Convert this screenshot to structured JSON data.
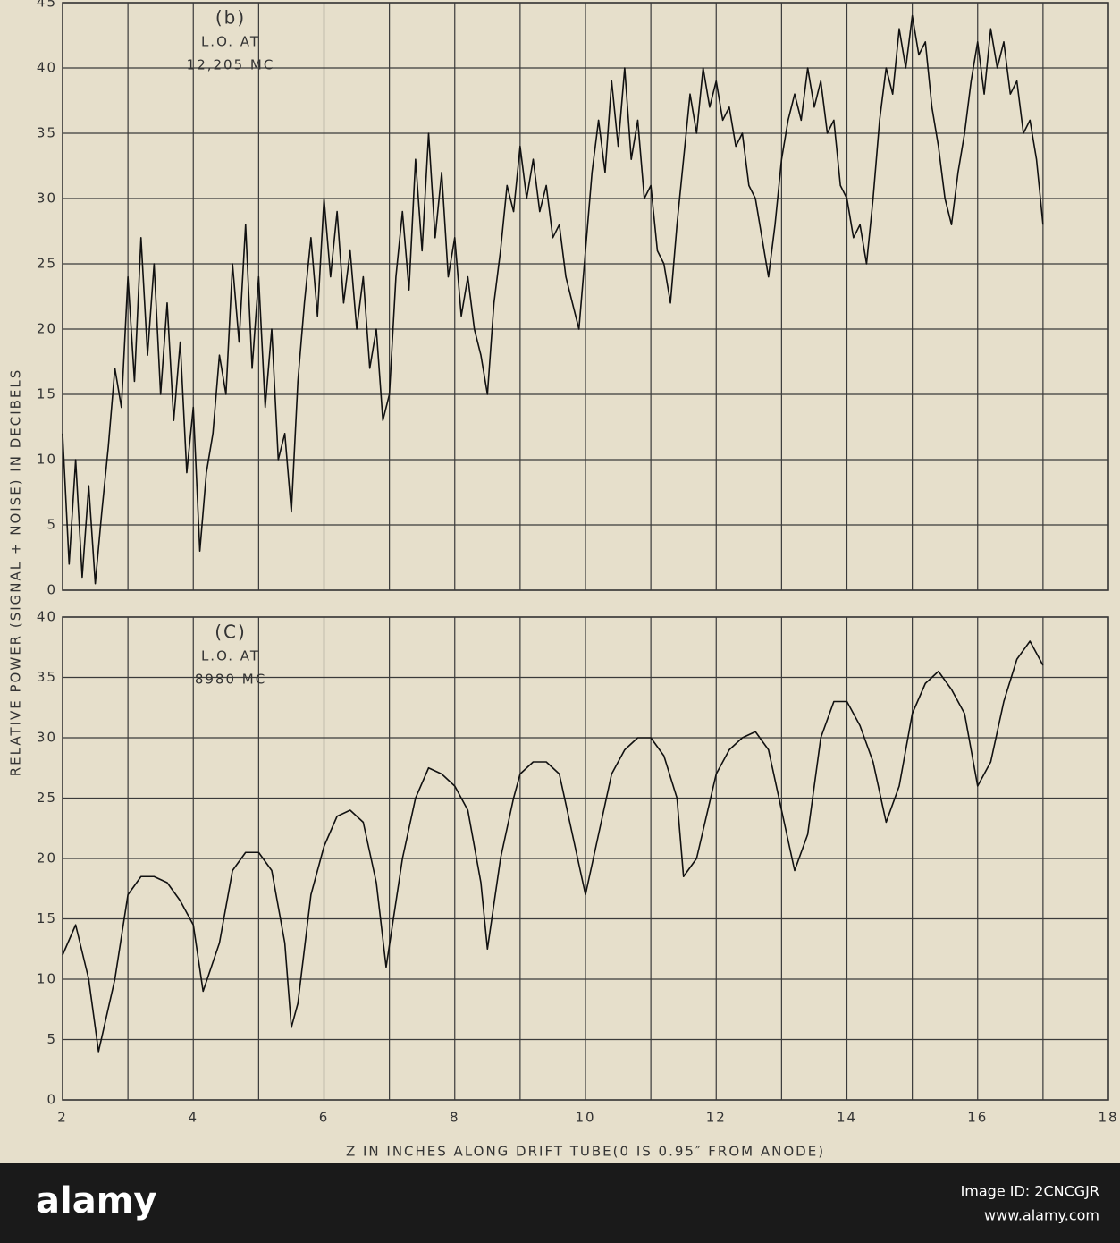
{
  "chart_data": [
    {
      "type": "line",
      "annotations": [
        "(b)",
        "L.O. AT",
        "12,205 MC"
      ],
      "ylabel": "RELATIVE POWER (SIGNAL + NOISE) IN DECIBELS",
      "ylim": [
        0,
        45
      ],
      "yticks": [
        0,
        5,
        10,
        15,
        20,
        25,
        30,
        35,
        40,
        45
      ],
      "grid": true,
      "series": [
        {
          "color": "#111111",
          "x": [
            2.0,
            2.1,
            2.2,
            2.3,
            2.4,
            2.5,
            2.6,
            2.7,
            2.8,
            2.9,
            3.0,
            3.1,
            3.2,
            3.3,
            3.4,
            3.5,
            3.6,
            3.7,
            3.8,
            3.9,
            4.0,
            4.1,
            4.2,
            4.3,
            4.4,
            4.5,
            4.6,
            4.7,
            4.8,
            4.9,
            5.0,
            5.1,
            5.2,
            5.3,
            5.4,
            5.5,
            5.6,
            5.7,
            5.8,
            5.9,
            6.0,
            6.1,
            6.2,
            6.3,
            6.4,
            6.5,
            6.6,
            6.7,
            6.8,
            6.9,
            7.0,
            7.1,
            7.2,
            7.3,
            7.4,
            7.5,
            7.6,
            7.7,
            7.8,
            7.9,
            8.0,
            8.1,
            8.2,
            8.3,
            8.4,
            8.5,
            8.6,
            8.7,
            8.8,
            8.9,
            9.0,
            9.1,
            9.2,
            9.3,
            9.4,
            9.5,
            9.6,
            9.7,
            9.8,
            9.9,
            10.0,
            10.1,
            10.2,
            10.3,
            10.4,
            10.5,
            10.6,
            10.7,
            10.8,
            10.9,
            11.0,
            11.1,
            11.2,
            11.3,
            11.4,
            11.5,
            11.6,
            11.7,
            11.8,
            11.9,
            12.0,
            12.1,
            12.2,
            12.3,
            12.4,
            12.5,
            12.6,
            12.7,
            12.8,
            12.9,
            13.0,
            13.1,
            13.2,
            13.3,
            13.4,
            13.5,
            13.6,
            13.7,
            13.8,
            13.9,
            14.0,
            14.1,
            14.2,
            14.3,
            14.4,
            14.5,
            14.6,
            14.7,
            14.8,
            14.9,
            15.0,
            15.1,
            15.2,
            15.3,
            15.4,
            15.5,
            15.6,
            15.7,
            15.8,
            15.9,
            16.0,
            16.1,
            16.2,
            16.3,
            16.4,
            16.5,
            16.6,
            16.7,
            16.8,
            16.9,
            17.0
          ],
          "values": [
            12,
            2,
            10,
            1,
            8,
            0.5,
            6,
            11,
            17,
            14,
            24,
            16,
            27,
            18,
            25,
            15,
            22,
            13,
            19,
            9,
            14,
            3,
            9,
            12,
            18,
            15,
            25,
            19,
            28,
            17,
            24,
            14,
            20,
            10,
            12,
            6,
            16,
            22,
            27,
            21,
            30,
            24,
            29,
            22,
            26,
            20,
            24,
            17,
            20,
            13,
            15,
            24,
            29,
            23,
            33,
            26,
            35,
            27,
            32,
            24,
            27,
            21,
            24,
            20,
            18,
            15,
            22,
            26,
            31,
            29,
            34,
            30,
            33,
            29,
            31,
            27,
            28,
            24,
            22,
            20,
            26,
            32,
            36,
            32,
            39,
            34,
            40,
            33,
            36,
            30,
            31,
            26,
            25,
            22,
            28,
            33,
            38,
            35,
            40,
            37,
            39,
            36,
            37,
            34,
            35,
            31,
            30,
            27,
            24,
            28,
            33,
            36,
            38,
            36,
            40,
            37,
            39,
            35,
            36,
            31,
            30,
            27,
            28,
            25,
            30,
            36,
            40,
            38,
            43,
            40,
            44,
            41,
            42,
            37,
            34,
            30,
            28,
            32,
            35,
            39,
            42,
            38,
            43,
            40,
            42,
            38,
            39,
            35,
            36,
            33,
            28
          ]
        }
      ]
    },
    {
      "type": "line",
      "annotations": [
        "(C)",
        "L.O. AT",
        "8980 MC"
      ],
      "xlabel": "Z IN INCHES ALONG DRIFT TUBE(0 IS 0.95″ FROM ANODE)",
      "xlim": [
        2,
        18
      ],
      "xticks": [
        2,
        4,
        6,
        8,
        10,
        12,
        14,
        16,
        18
      ],
      "ylim": [
        0,
        40
      ],
      "yticks": [
        0,
        5,
        10,
        15,
        20,
        25,
        30,
        35,
        40
      ],
      "grid": true,
      "series": [
        {
          "color": "#111111",
          "x": [
            2.0,
            2.2,
            2.4,
            2.55,
            2.8,
            3.0,
            3.2,
            3.4,
            3.6,
            3.8,
            4.0,
            4.15,
            4.4,
            4.6,
            4.8,
            5.0,
            5.2,
            5.4,
            5.5,
            5.6,
            5.8,
            6.0,
            6.2,
            6.4,
            6.6,
            6.8,
            6.95,
            7.2,
            7.4,
            7.6,
            7.8,
            8.0,
            8.2,
            8.4,
            8.5,
            8.7,
            8.9,
            9.0,
            9.2,
            9.4,
            9.6,
            9.8,
            10.0,
            10.2,
            10.4,
            10.6,
            10.8,
            11.0,
            11.2,
            11.4,
            11.5,
            11.7,
            12.0,
            12.2,
            12.4,
            12.6,
            12.8,
            13.0,
            13.2,
            13.4,
            13.6,
            13.8,
            14.0,
            14.2,
            14.4,
            14.6,
            14.8,
            15.0,
            15.2,
            15.4,
            15.6,
            15.8,
            16.0,
            16.2,
            16.4,
            16.6,
            16.8,
            17.0
          ],
          "values": [
            12,
            14.5,
            10,
            4,
            10,
            17,
            18.5,
            18.5,
            18,
            16.5,
            14.5,
            9,
            13,
            19,
            20.5,
            20.5,
            19,
            13,
            6,
            8,
            17,
            21,
            23.5,
            24,
            23,
            18,
            11,
            20,
            25,
            27.5,
            27,
            26,
            24,
            18,
            12.5,
            20,
            25,
            27,
            28,
            28,
            27,
            22,
            17,
            22,
            27,
            29,
            30,
            30,
            28.5,
            25,
            18.5,
            20,
            27,
            29,
            30,
            30.5,
            29,
            24,
            19,
            22,
            30,
            33,
            33,
            31,
            28,
            23,
            26,
            32,
            34.5,
            35.5,
            34,
            32,
            26,
            28,
            33,
            36.5,
            38,
            36
          ]
        }
      ]
    }
  ],
  "footer": {
    "brand": "alamy",
    "image_id": "Image ID: 2CNCGJR",
    "url": "www.alamy.com"
  }
}
